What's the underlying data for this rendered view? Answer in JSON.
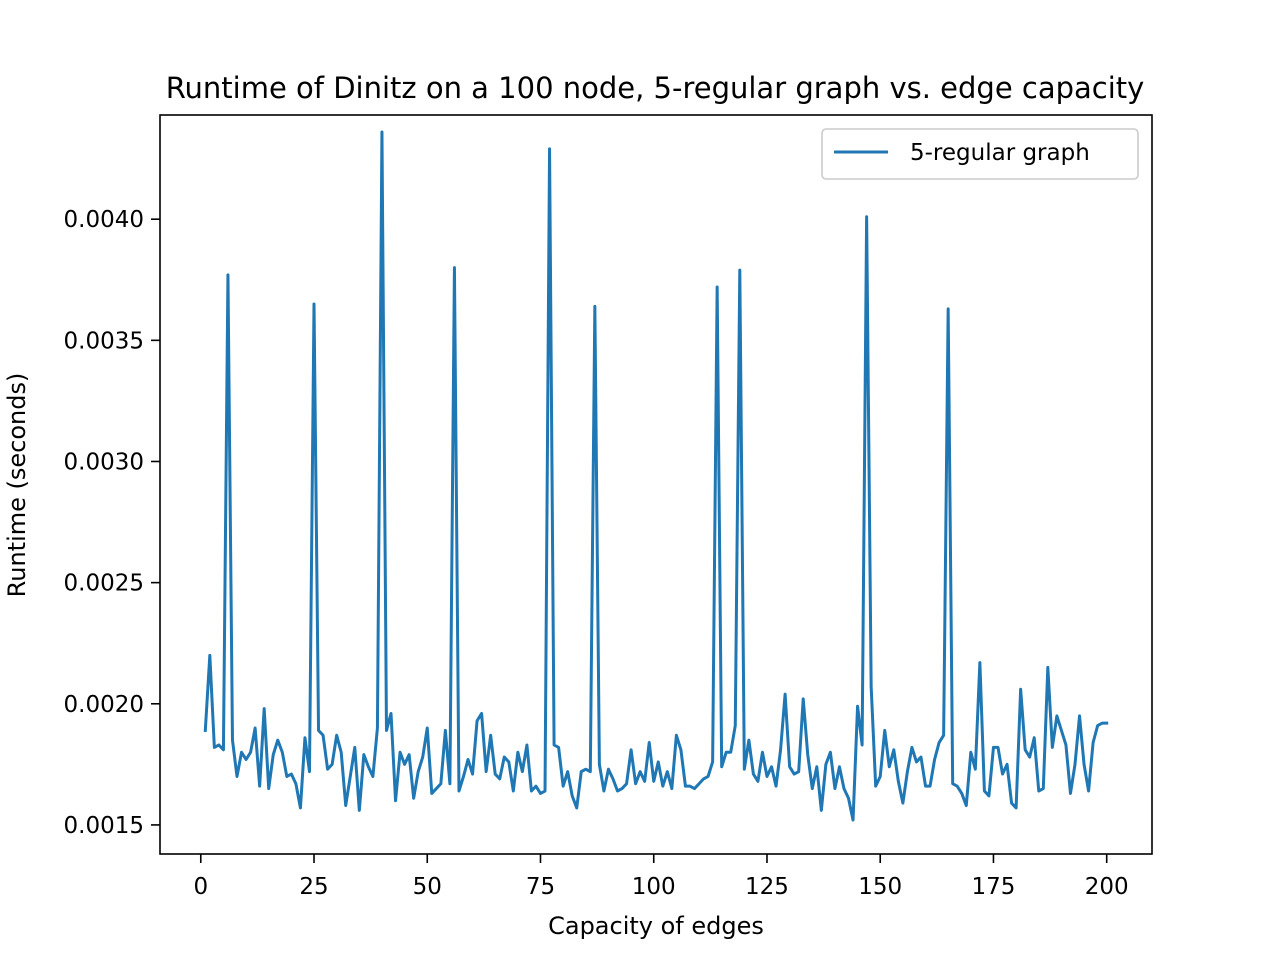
{
  "chart_data": {
    "type": "line",
    "title": "Runtime of Dinitz on a 100 node, 5-regular graph vs. edge capacity",
    "xlabel": "Capacity of edges",
    "ylabel": "Runtime (seconds)",
    "xlim": [
      -9,
      210
    ],
    "ylim": [
      0.00138,
      0.00443
    ],
    "xticks": [
      0,
      25,
      50,
      75,
      100,
      125,
      150,
      175,
      200
    ],
    "xtick_labels": [
      "0",
      "25",
      "50",
      "75",
      "100",
      "125",
      "150",
      "175",
      "200"
    ],
    "yticks": [
      0.0015,
      0.002,
      0.0025,
      0.003,
      0.0035,
      0.004
    ],
    "ytick_labels": [
      "0.0015",
      "0.0020",
      "0.0025",
      "0.0030",
      "0.0035",
      "0.0040"
    ],
    "grid": false,
    "legend": {
      "placement": "top-right"
    },
    "series": [
      {
        "name": "5-regular graph",
        "color": "#1f77b4",
        "points": [
          [
            1,
            0.00189
          ],
          [
            2,
            0.0022
          ],
          [
            3,
            0.00182
          ],
          [
            4,
            0.00183
          ],
          [
            5,
            0.00181
          ],
          [
            6,
            0.00377
          ],
          [
            7,
            0.00185
          ],
          [
            8,
            0.0017
          ],
          [
            9,
            0.0018
          ],
          [
            10,
            0.00177
          ],
          [
            11,
            0.0018
          ],
          [
            12,
            0.0019
          ],
          [
            13,
            0.00166
          ],
          [
            14,
            0.00198
          ],
          [
            15,
            0.00165
          ],
          [
            16,
            0.00179
          ],
          [
            17,
            0.00185
          ],
          [
            18,
            0.0018
          ],
          [
            19,
            0.0017
          ],
          [
            20,
            0.00171
          ],
          [
            21,
            0.00167
          ],
          [
            22,
            0.00157
          ],
          [
            23,
            0.00186
          ],
          [
            24,
            0.00172
          ],
          [
            25,
            0.00365
          ],
          [
            26,
            0.00189
          ],
          [
            27,
            0.00187
          ],
          [
            28,
            0.00173
          ],
          [
            29,
            0.00175
          ],
          [
            30,
            0.00187
          ],
          [
            31,
            0.0018
          ],
          [
            32,
            0.00158
          ],
          [
            33,
            0.0017
          ],
          [
            34,
            0.00182
          ],
          [
            35,
            0.00156
          ],
          [
            36,
            0.00179
          ],
          [
            37,
            0.00174
          ],
          [
            38,
            0.0017
          ],
          [
            39,
            0.0019
          ],
          [
            40,
            0.00436
          ],
          [
            41,
            0.00189
          ],
          [
            42,
            0.00196
          ],
          [
            43,
            0.0016
          ],
          [
            44,
            0.0018
          ],
          [
            45,
            0.00175
          ],
          [
            46,
            0.00179
          ],
          [
            47,
            0.00161
          ],
          [
            48,
            0.00172
          ],
          [
            49,
            0.00178
          ],
          [
            50,
            0.0019
          ],
          [
            51,
            0.00163
          ],
          [
            52,
            0.00165
          ],
          [
            53,
            0.00167
          ],
          [
            54,
            0.00189
          ],
          [
            55,
            0.00167
          ],
          [
            56,
            0.0038
          ],
          [
            57,
            0.00164
          ],
          [
            58,
            0.0017
          ],
          [
            59,
            0.00177
          ],
          [
            60,
            0.00171
          ],
          [
            61,
            0.00193
          ],
          [
            62,
            0.00196
          ],
          [
            63,
            0.00172
          ],
          [
            64,
            0.00187
          ],
          [
            65,
            0.00171
          ],
          [
            66,
            0.00169
          ],
          [
            67,
            0.00178
          ],
          [
            68,
            0.00176
          ],
          [
            69,
            0.00164
          ],
          [
            70,
            0.0018
          ],
          [
            71,
            0.00172
          ],
          [
            72,
            0.00183
          ],
          [
            73,
            0.00164
          ],
          [
            74,
            0.00166
          ],
          [
            75,
            0.00163
          ],
          [
            76,
            0.00164
          ],
          [
            77,
            0.00429
          ],
          [
            78,
            0.00183
          ],
          [
            79,
            0.00182
          ],
          [
            80,
            0.00166
          ],
          [
            81,
            0.00172
          ],
          [
            82,
            0.00162
          ],
          [
            83,
            0.00157
          ],
          [
            84,
            0.00172
          ],
          [
            85,
            0.00173
          ],
          [
            86,
            0.00172
          ],
          [
            87,
            0.00364
          ],
          [
            88,
            0.00175
          ],
          [
            89,
            0.00164
          ],
          [
            90,
            0.00173
          ],
          [
            91,
            0.00169
          ],
          [
            92,
            0.00164
          ],
          [
            93,
            0.00165
          ],
          [
            94,
            0.00167
          ],
          [
            95,
            0.00181
          ],
          [
            96,
            0.00167
          ],
          [
            97,
            0.00172
          ],
          [
            98,
            0.00168
          ],
          [
            99,
            0.00184
          ],
          [
            100,
            0.00168
          ],
          [
            101,
            0.00176
          ],
          [
            102,
            0.00166
          ],
          [
            103,
            0.00172
          ],
          [
            104,
            0.00165
          ],
          [
            105,
            0.00187
          ],
          [
            106,
            0.00181
          ],
          [
            107,
            0.00166
          ],
          [
            108,
            0.00166
          ],
          [
            109,
            0.00165
          ],
          [
            110,
            0.00167
          ],
          [
            111,
            0.00169
          ],
          [
            112,
            0.0017
          ],
          [
            113,
            0.00176
          ],
          [
            114,
            0.00372
          ],
          [
            115,
            0.00174
          ],
          [
            116,
            0.0018
          ],
          [
            117,
            0.0018
          ],
          [
            118,
            0.00191
          ],
          [
            119,
            0.00379
          ],
          [
            120,
            0.00173
          ],
          [
            121,
            0.00185
          ],
          [
            122,
            0.00171
          ],
          [
            123,
            0.00168
          ],
          [
            124,
            0.0018
          ],
          [
            125,
            0.0017
          ],
          [
            126,
            0.00174
          ],
          [
            127,
            0.00166
          ],
          [
            128,
            0.00181
          ],
          [
            129,
            0.00204
          ],
          [
            130,
            0.00174
          ],
          [
            131,
            0.00171
          ],
          [
            132,
            0.00172
          ],
          [
            133,
            0.00202
          ],
          [
            134,
            0.00179
          ],
          [
            135,
            0.00165
          ],
          [
            136,
            0.00174
          ],
          [
            137,
            0.00156
          ],
          [
            138,
            0.00175
          ],
          [
            139,
            0.0018
          ],
          [
            140,
            0.00165
          ],
          [
            141,
            0.00174
          ],
          [
            142,
            0.00165
          ],
          [
            143,
            0.00161
          ],
          [
            144,
            0.00152
          ],
          [
            145,
            0.00199
          ],
          [
            146,
            0.00183
          ],
          [
            147,
            0.00401
          ],
          [
            148,
            0.00207
          ],
          [
            149,
            0.00166
          ],
          [
            150,
            0.0017
          ],
          [
            151,
            0.00189
          ],
          [
            152,
            0.00174
          ],
          [
            153,
            0.00181
          ],
          [
            154,
            0.00168
          ],
          [
            155,
            0.00159
          ],
          [
            156,
            0.00172
          ],
          [
            157,
            0.00182
          ],
          [
            158,
            0.00176
          ],
          [
            159,
            0.00178
          ],
          [
            160,
            0.00166
          ],
          [
            161,
            0.00166
          ],
          [
            162,
            0.00177
          ],
          [
            163,
            0.00184
          ],
          [
            164,
            0.00187
          ],
          [
            165,
            0.00363
          ],
          [
            166,
            0.00167
          ],
          [
            167,
            0.00166
          ],
          [
            168,
            0.00163
          ],
          [
            169,
            0.00158
          ],
          [
            170,
            0.0018
          ],
          [
            171,
            0.00173
          ],
          [
            172,
            0.00217
          ],
          [
            173,
            0.00164
          ],
          [
            174,
            0.00162
          ],
          [
            175,
            0.00182
          ],
          [
            176,
            0.00182
          ],
          [
            177,
            0.00171
          ],
          [
            178,
            0.00175
          ],
          [
            179,
            0.00159
          ],
          [
            180,
            0.00157
          ],
          [
            181,
            0.00206
          ],
          [
            182,
            0.00181
          ],
          [
            183,
            0.00178
          ],
          [
            184,
            0.00186
          ],
          [
            185,
            0.00164
          ],
          [
            186,
            0.00165
          ],
          [
            187,
            0.00215
          ],
          [
            188,
            0.00182
          ],
          [
            189,
            0.00195
          ],
          [
            190,
            0.00189
          ],
          [
            191,
            0.00183
          ],
          [
            192,
            0.00163
          ],
          [
            193,
            0.00175
          ],
          [
            194,
            0.00195
          ],
          [
            195,
            0.00175
          ],
          [
            196,
            0.00164
          ],
          [
            197,
            0.00184
          ],
          [
            198,
            0.00191
          ],
          [
            199,
            0.00192
          ],
          [
            200,
            0.00192
          ]
        ]
      }
    ]
  }
}
